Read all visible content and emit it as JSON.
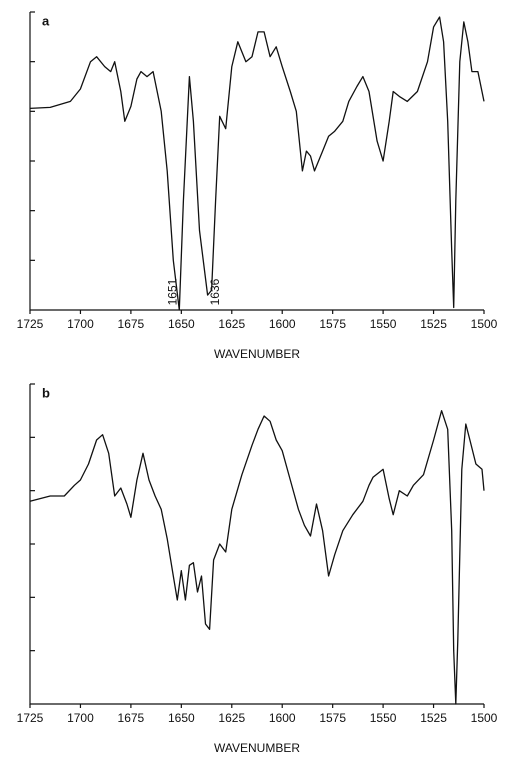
{
  "chart_data": [
    {
      "type": "line",
      "label": "a",
      "x_label": "WAVENUMBER",
      "x": [
        1725,
        1715,
        1705,
        1700,
        1695,
        1692,
        1688,
        1685,
        1683,
        1680,
        1678,
        1675,
        1672,
        1670,
        1667,
        1664,
        1660,
        1657,
        1654,
        1651,
        1649,
        1646,
        1644,
        1641,
        1637,
        1635,
        1633,
        1631,
        1628,
        1625,
        1622,
        1618,
        1615,
        1612,
        1609,
        1606,
        1603,
        1600,
        1596,
        1593,
        1590,
        1588,
        1586,
        1584,
        1580,
        1577,
        1574,
        1570,
        1567,
        1563,
        1560,
        1557,
        1553,
        1550,
        1547,
        1545,
        1542,
        1538,
        1533,
        1528,
        1525,
        1522,
        1520,
        1518,
        1516,
        1515,
        1514,
        1512,
        1510,
        1508,
        1506,
        1503,
        1500
      ],
      "series": [
        {
          "color": "#111111",
          "values": [
            4.06,
            4.08,
            4.2,
            4.45,
            5.0,
            5.1,
            4.9,
            4.8,
            5.0,
            4.4,
            3.8,
            4.1,
            4.65,
            4.8,
            4.7,
            4.8,
            4.0,
            2.8,
            1.0,
            0.0,
            2.2,
            4.7,
            3.8,
            1.6,
            0.3,
            0.4,
            2.2,
            3.9,
            3.65,
            4.9,
            5.4,
            5.0,
            5.1,
            5.6,
            5.6,
            5.1,
            5.3,
            4.9,
            4.4,
            4.0,
            2.8,
            3.2,
            3.1,
            2.8,
            3.2,
            3.5,
            3.6,
            3.8,
            4.2,
            4.5,
            4.7,
            4.4,
            3.4,
            3.0,
            3.8,
            4.4,
            4.3,
            4.2,
            4.4,
            5.0,
            5.7,
            5.9,
            5.4,
            3.8,
            1.2,
            0.05,
            2.2,
            5.0,
            5.8,
            5.4,
            4.8,
            4.8,
            4.2
          ]
        }
      ],
      "xlim": [
        1725,
        1500
      ],
      "xticks": [
        1725,
        1700,
        1675,
        1650,
        1625,
        1600,
        1575,
        1550,
        1525,
        1500
      ],
      "ylim": [
        0,
        6
      ],
      "yticks": [
        1,
        2,
        3,
        4,
        5,
        6
      ],
      "annotations": [
        {
          "text": "1651",
          "x": 1651
        },
        {
          "text": "1636",
          "x": 1636
        }
      ]
    },
    {
      "type": "line",
      "label": "b",
      "x_label": "WAVENUMBER",
      "x": [
        1725,
        1715,
        1708,
        1703,
        1700,
        1696,
        1692,
        1689,
        1686,
        1683,
        1680,
        1677,
        1675,
        1672,
        1669,
        1666,
        1663,
        1660,
        1657,
        1654,
        1652,
        1650,
        1648,
        1646,
        1644,
        1642,
        1640,
        1638,
        1636,
        1634,
        1631,
        1628,
        1625,
        1620,
        1615,
        1612,
        1609,
        1606,
        1603,
        1600,
        1596,
        1592,
        1589,
        1586,
        1583,
        1580,
        1577,
        1574,
        1570,
        1565,
        1560,
        1557,
        1555,
        1550,
        1547,
        1545,
        1542,
        1538,
        1535,
        1530,
        1525,
        1521,
        1518,
        1516,
        1515,
        1514,
        1513,
        1511,
        1509,
        1507,
        1504,
        1501,
        1500
      ],
      "series": [
        {
          "color": "#111111",
          "values": [
            3.8,
            3.9,
            3.9,
            4.1,
            4.2,
            4.5,
            4.95,
            5.05,
            4.7,
            3.9,
            4.05,
            3.75,
            3.5,
            4.2,
            4.7,
            4.2,
            3.9,
            3.65,
            3.1,
            2.4,
            1.95,
            2.5,
            1.95,
            2.6,
            2.65,
            2.1,
            2.4,
            1.5,
            1.4,
            2.7,
            3.0,
            2.85,
            3.65,
            4.3,
            4.85,
            5.15,
            5.4,
            5.3,
            4.95,
            4.75,
            4.2,
            3.65,
            3.35,
            3.15,
            3.75,
            3.25,
            2.4,
            2.8,
            3.25,
            3.55,
            3.8,
            4.1,
            4.25,
            4.4,
            3.85,
            3.55,
            4.0,
            3.9,
            4.1,
            4.3,
            4.95,
            5.5,
            5.15,
            3.25,
            1.0,
            0.0,
            1.2,
            4.4,
            5.25,
            4.95,
            4.5,
            4.4,
            4.0
          ]
        }
      ],
      "xlim": [
        1725,
        1500
      ],
      "xticks": [
        1725,
        1700,
        1675,
        1650,
        1625,
        1600,
        1575,
        1550,
        1525,
        1500
      ],
      "ylim": [
        0,
        6
      ],
      "yticks": [
        1,
        2,
        3,
        4,
        5,
        6
      ]
    }
  ]
}
